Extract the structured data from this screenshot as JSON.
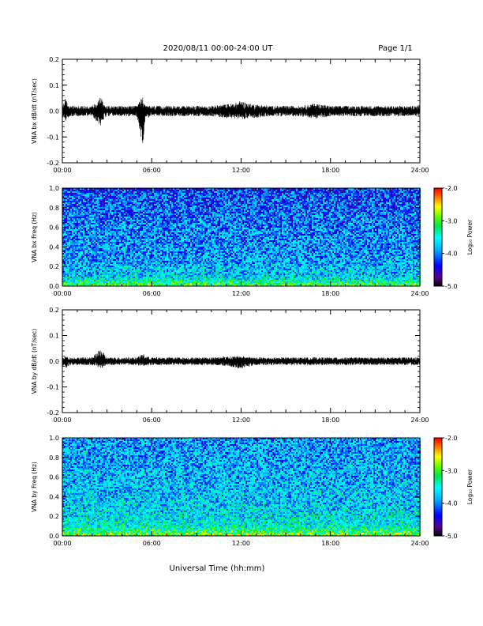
{
  "header": {
    "title": "2020/08/11  00:00-24:00 UT",
    "page": "Page 1/1"
  },
  "xaxis_label": "Universal Time (hh:mm)",
  "colorbar": {
    "label": "Log₁₀ Power",
    "ticks": [
      "-2.0",
      "-3.0",
      "-4.0",
      "-5.0"
    ],
    "range": [
      -5.0,
      -2.0
    ]
  },
  "chart_data": [
    {
      "type": "line",
      "ylabel": "VNA bx dB/dt (nT/sec)",
      "xlim": [
        0,
        24
      ],
      "ylim": [
        -0.2,
        0.2
      ],
      "xticks": [
        "00:00",
        "06:00",
        "12:00",
        "18:00",
        "24:00"
      ],
      "yticks": [
        "0.2",
        "0.1",
        "0.0",
        "-0.1",
        "-0.2"
      ],
      "x_hours": [
        0.0,
        0.2,
        0.5,
        1.0,
        1.5,
        2.0,
        2.6,
        2.7,
        2.8,
        3.0,
        4.0,
        5.0,
        5.4,
        5.5,
        5.6,
        6.0,
        8.0,
        10.0,
        11.5,
        12.0,
        12.5,
        14.0,
        16.0,
        17.0,
        18.0,
        20.0,
        22.0,
        24.0
      ],
      "y_max": [
        0.02,
        0.05,
        0.02,
        0.02,
        0.02,
        0.02,
        0.06,
        0.04,
        0.03,
        0.02,
        0.02,
        0.02,
        0.06,
        0.04,
        0.02,
        0.02,
        0.02,
        0.02,
        0.03,
        0.04,
        0.03,
        0.02,
        0.02,
        0.03,
        0.02,
        0.02,
        0.02,
        0.02
      ],
      "y_min": [
        -0.02,
        -0.04,
        -0.02,
        -0.02,
        -0.02,
        -0.02,
        -0.06,
        -0.04,
        -0.03,
        -0.02,
        -0.02,
        -0.02,
        -0.14,
        -0.06,
        -0.03,
        -0.02,
        -0.02,
        -0.02,
        -0.03,
        -0.03,
        -0.03,
        -0.02,
        -0.02,
        -0.03,
        -0.02,
        -0.02,
        -0.02,
        -0.02
      ]
    },
    {
      "type": "heatmap",
      "ylabel": "VNA bx Freq (Hz)",
      "xlim": [
        0,
        24
      ],
      "ylim": [
        0.0,
        1.0
      ],
      "xticks": [
        "00:00",
        "06:00",
        "12:00",
        "18:00",
        "24:00"
      ],
      "yticks": [
        "1.0",
        "0.8",
        "0.6",
        "0.4",
        "0.2",
        "0.0"
      ],
      "power_range": [
        -5.0,
        -2.0
      ],
      "power_by_freq": {
        "freq_hz": [
          0.0,
          0.05,
          0.1,
          0.3,
          0.6,
          1.0
        ],
        "log10_power": [
          -2.9,
          -3.4,
          -3.7,
          -3.9,
          -4.0,
          -4.2
        ]
      }
    },
    {
      "type": "line",
      "ylabel": "VNA by dB/dt (nT/sec)",
      "xlim": [
        0,
        24
      ],
      "ylim": [
        -0.2,
        0.2
      ],
      "xticks": [
        "00:00",
        "06:00",
        "12:00",
        "18:00",
        "24:00"
      ],
      "yticks": [
        "0.2",
        "0.1",
        "0.0",
        "-0.1",
        "-0.2"
      ],
      "x_hours": [
        0.0,
        0.2,
        0.5,
        1.0,
        2.0,
        2.6,
        2.8,
        3.0,
        5.0,
        5.4,
        5.6,
        6.0,
        8.0,
        10.0,
        11.0,
        12.0,
        13.0,
        14.0,
        16.0,
        18.0,
        20.0,
        22.0,
        24.0
      ],
      "y_max": [
        0.015,
        0.02,
        0.015,
        0.015,
        0.015,
        0.05,
        0.03,
        0.015,
        0.015,
        0.03,
        0.02,
        0.015,
        0.015,
        0.015,
        0.02,
        0.02,
        0.015,
        0.015,
        0.015,
        0.015,
        0.015,
        0.015,
        0.015
      ],
      "y_min": [
        -0.015,
        -0.03,
        -0.015,
        -0.015,
        -0.015,
        -0.03,
        -0.02,
        -0.015,
        -0.015,
        -0.02,
        -0.015,
        -0.015,
        -0.015,
        -0.015,
        -0.02,
        -0.03,
        -0.015,
        -0.015,
        -0.015,
        -0.015,
        -0.015,
        -0.015,
        -0.015
      ]
    },
    {
      "type": "heatmap",
      "ylabel": "VNA by Freq (Hz)",
      "xlim": [
        0,
        24
      ],
      "ylim": [
        0.0,
        1.0
      ],
      "xticks": [
        "00:00",
        "06:00",
        "12:00",
        "18:00",
        "24:00"
      ],
      "yticks": [
        "1.0",
        "0.8",
        "0.6",
        "0.4",
        "0.2",
        "0.0"
      ],
      "power_range": [
        -5.0,
        -2.0
      ],
      "power_by_freq": {
        "freq_hz": [
          0.0,
          0.05,
          0.1,
          0.3,
          0.6,
          1.0
        ],
        "log10_power": [
          -2.8,
          -3.2,
          -3.5,
          -3.7,
          -3.8,
          -3.9
        ]
      }
    }
  ]
}
